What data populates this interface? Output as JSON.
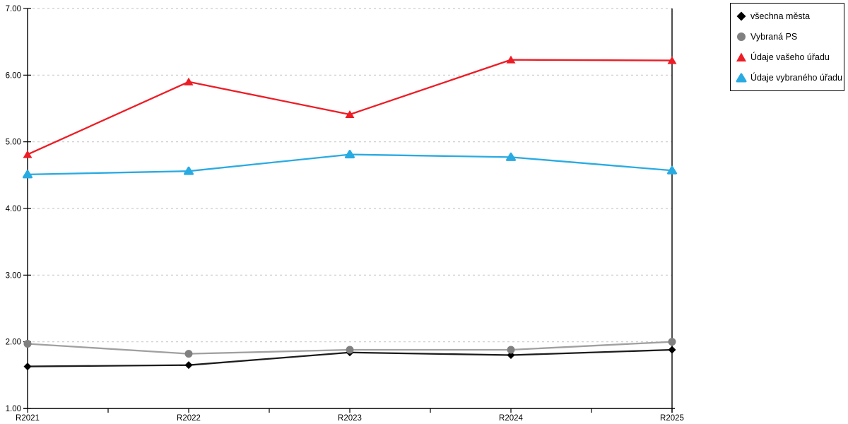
{
  "chart_data": {
    "type": "line",
    "x_categories": [
      "R2021",
      "R2022",
      "R2023",
      "R2024",
      "R2025"
    ],
    "y_ticks": [
      7.0,
      6.0,
      5.0,
      4.0,
      3.0,
      2.0,
      1.0
    ],
    "y_tick_labels": [
      "7.00",
      "6.00",
      "5.00",
      "4.00",
      "3.00",
      "2.00",
      "1.00"
    ],
    "ylim": [
      1.0,
      7.0
    ],
    "grid": "horizontal-dashed",
    "grid_color": "#c9c9c9",
    "axis_color": "#000000",
    "legend_position": "outside-top-right",
    "minor_x_ticks_between_categories": true,
    "series": [
      {
        "name": "všechna města",
        "marker": "diamond",
        "color": "#000000",
        "line_color": "#1c1c1c",
        "values": [
          1.63,
          1.65,
          1.84,
          1.8,
          1.88
        ]
      },
      {
        "name": "Vybraná PS",
        "marker": "circle",
        "color": "#808080",
        "line_color": "#a0a0a0",
        "values": [
          1.97,
          1.82,
          1.88,
          1.88,
          2.0
        ]
      },
      {
        "name": "Údaje vašeho úřadu",
        "marker": "triangle",
        "color": "#ee1c25",
        "line_color": "#ee1c25",
        "values": [
          4.81,
          5.9,
          5.41,
          6.23,
          6.22
        ]
      },
      {
        "name": "Údaje vybraného úřadu",
        "marker": "triangle-rounded",
        "color": "#29abe2",
        "line_color": "#29abe2",
        "values": [
          4.51,
          4.56,
          4.81,
          4.77,
          4.57
        ]
      }
    ]
  }
}
